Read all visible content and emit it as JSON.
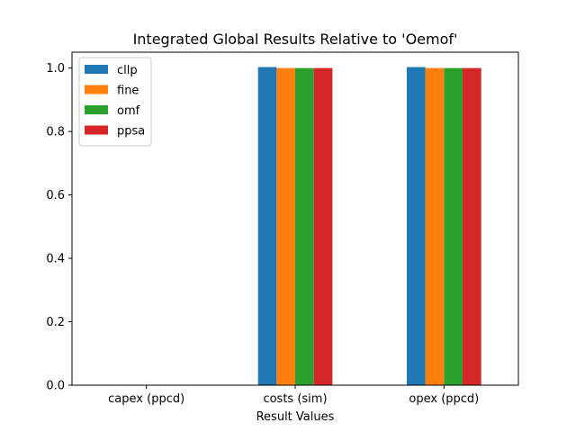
{
  "chart_data": {
    "type": "bar",
    "title": "Integrated Global Results Relative to 'Oemof'",
    "xlabel": "Result Values",
    "ylabel": "",
    "categories": [
      "capex (ppcd)",
      "costs (sim)",
      "opex (ppcd)"
    ],
    "series": [
      {
        "name": "cllp",
        "color": "#1f77b4",
        "values": [
          0,
          1.003,
          1.003
        ]
      },
      {
        "name": "fine",
        "color": "#ff7f0e",
        "values": [
          0,
          1.0,
          1.0
        ]
      },
      {
        "name": "omf",
        "color": "#2ca02c",
        "values": [
          0,
          1.0,
          1.0
        ]
      },
      {
        "name": "ppsa",
        "color": "#d62728",
        "values": [
          0,
          1.0,
          1.0
        ]
      }
    ],
    "ylim": [
      0,
      1.05
    ],
    "yticks": [
      "0.0",
      "0.2",
      "0.4",
      "0.6",
      "0.8",
      "1.0"
    ],
    "grid": false,
    "legend_position": "upper-left"
  }
}
